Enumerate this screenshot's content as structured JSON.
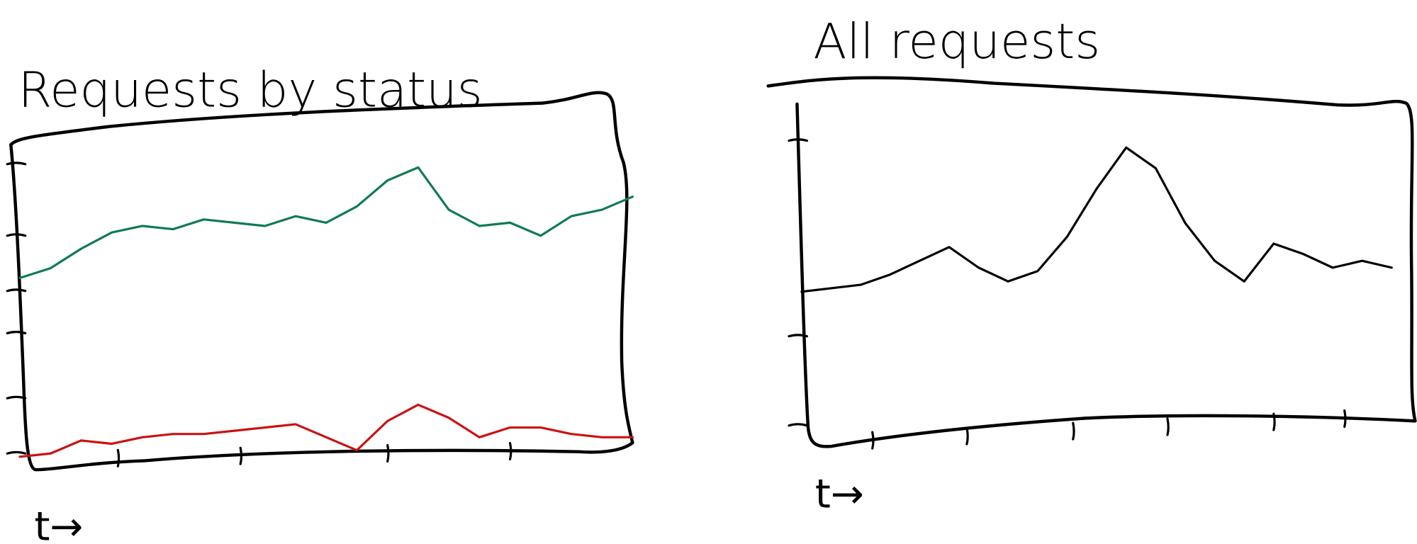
{
  "chart_data": [
    {
      "type": "line",
      "title": "Requests by status",
      "x_label": "t→",
      "ylim": [
        0,
        100
      ],
      "series": [
        {
          "color": "#0f7a5a",
          "values": [
            59,
            62,
            68,
            73,
            75,
            74,
            77,
            76,
            75,
            78,
            76,
            81,
            89,
            93,
            80,
            75,
            76,
            72,
            78,
            80,
            84
          ]
        },
        {
          "color": "#cc1111",
          "values": [
            4,
            5,
            9,
            8,
            10,
            11,
            11,
            12,
            13,
            14,
            10,
            6,
            15,
            20,
            16,
            10,
            13,
            13,
            11,
            10,
            10
          ]
        }
      ]
    },
    {
      "type": "line",
      "title": "All requests",
      "x_label": "t→",
      "ylim": [
        0,
        100
      ],
      "series": [
        {
          "color": "#000000",
          "values": [
            44,
            45,
            46,
            49,
            53,
            57,
            51,
            47,
            50,
            60,
            74,
            86,
            80,
            64,
            53,
            47,
            58,
            55,
            51,
            53,
            51
          ]
        }
      ]
    }
  ]
}
